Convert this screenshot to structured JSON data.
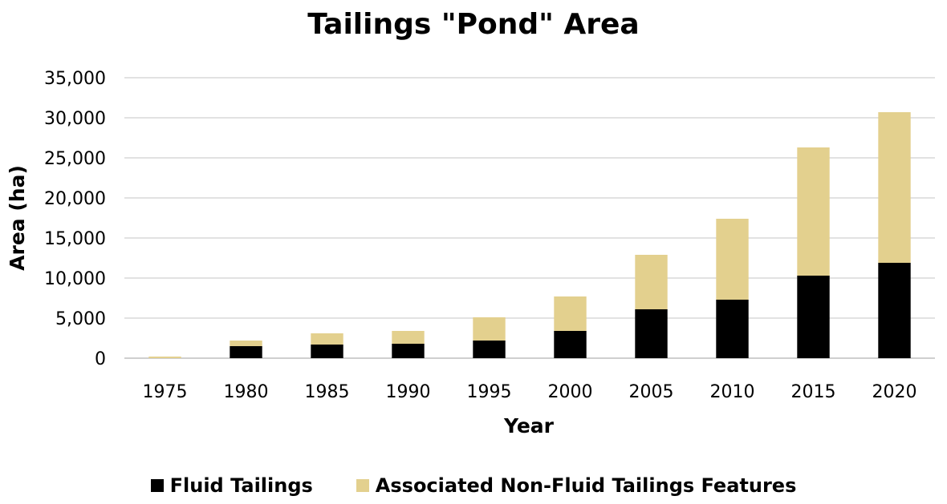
{
  "chart_data": {
    "type": "bar",
    "stacked": true,
    "title": "Tailings \"Pond\" Area",
    "xlabel": "Year",
    "ylabel": "Area (ha)",
    "ylim": [
      0,
      35000
    ],
    "yticks": [
      "0",
      "5,000",
      "10,000",
      "15,000",
      "20,000",
      "25,000",
      "30,000",
      "35,000"
    ],
    "grid": true,
    "legend_position": "bottom",
    "categories": [
      "1975",
      "1980",
      "1985",
      "1990",
      "1995",
      "2000",
      "2005",
      "2010",
      "2015",
      "2020"
    ],
    "series": [
      {
        "name": "Fluid Tailings",
        "color": "#000000",
        "values": [
          0,
          1500,
          1700,
          1800,
          2200,
          3400,
          6100,
          7300,
          10300,
          11900
        ]
      },
      {
        "name": "Associated Non-Fluid Tailings Features",
        "color": "#e3d08e",
        "values": [
          200,
          700,
          1400,
          1600,
          2900,
          4300,
          6800,
          10100,
          16000,
          18800
        ]
      }
    ]
  }
}
